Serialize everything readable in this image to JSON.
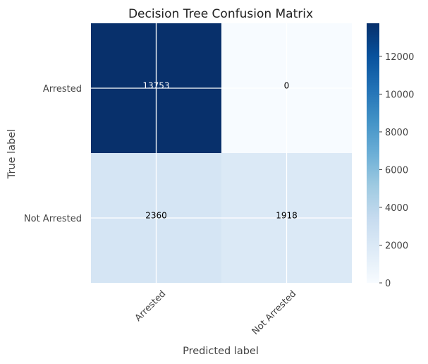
{
  "chart_data": {
    "type": "heatmap",
    "title": "Decision Tree Confusion Matrix",
    "xlabel": "Predicted label",
    "ylabel": "True label",
    "x_categories": [
      "Arrested",
      "Not Arrested"
    ],
    "y_categories": [
      "Arrested",
      "Not Arrested"
    ],
    "values": [
      [
        13753,
        0
      ],
      [
        2360,
        1918
      ]
    ],
    "colormap": "Blues",
    "colorbar": {
      "min": 0,
      "max": 13753,
      "ticks": [
        0,
        2000,
        4000,
        6000,
        8000,
        10000,
        12000
      ]
    },
    "grid": true,
    "text_colors": {
      "light": "#ffffff",
      "dark": "#000000"
    }
  }
}
